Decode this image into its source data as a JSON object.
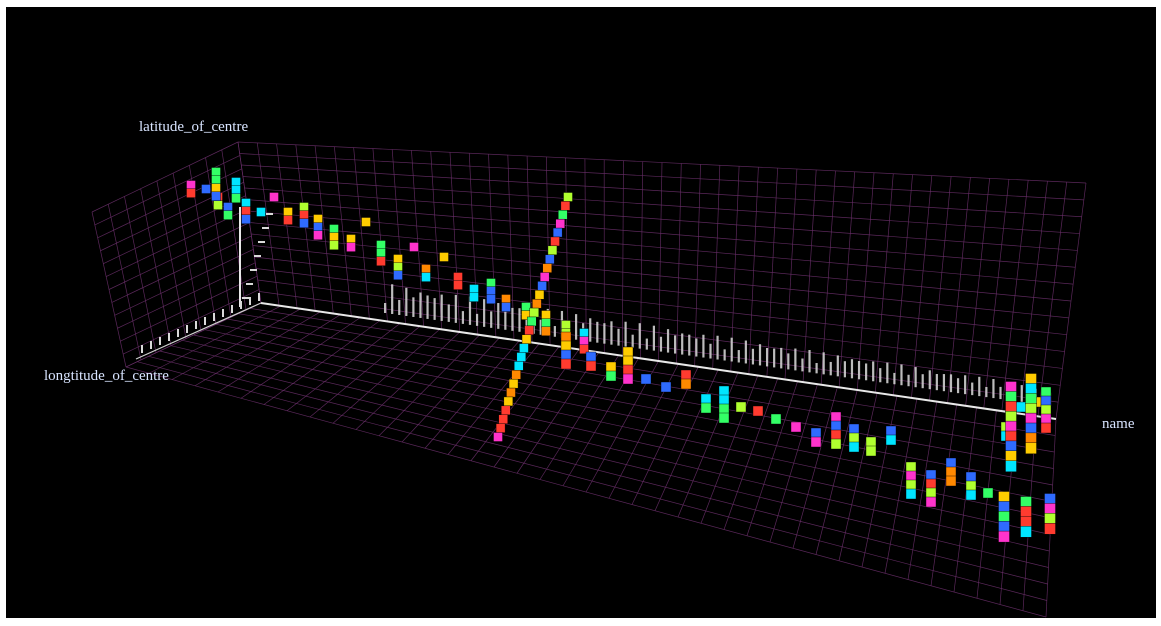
{
  "chart_data": {
    "type": "scatter",
    "title": "",
    "axes": {
      "x_label": "longtitude_of_centre",
      "y_label": "latitude_of_centre",
      "z_label": "name"
    },
    "grid": true,
    "background": "#000000",
    "grid_color": "#6a2f6a",
    "marker_colors": [
      "#ff3b2f",
      "#ffcc00",
      "#33ff66",
      "#2f6bff",
      "#ff33cc",
      "#00e5ff",
      "#ff8800",
      "#b0ff2f"
    ],
    "marker_shape": "cube",
    "projection": "3d perspective"
  }
}
